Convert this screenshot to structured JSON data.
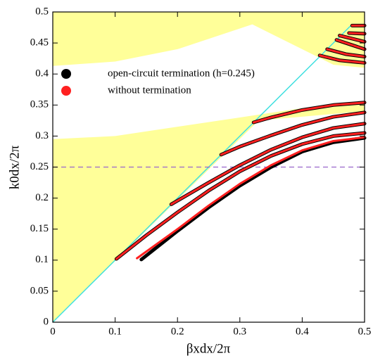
{
  "chart_data": {
    "type": "line",
    "xlabel": "βxdx/2π",
    "ylabel": "k0dx/2π",
    "xlim": [
      0,
      0.5
    ],
    "ylim": [
      0,
      0.5
    ],
    "xticks": [
      0,
      0.1,
      0.2,
      0.3,
      0.4,
      0.5
    ],
    "yticks": [
      0,
      0.05,
      0.1,
      0.15,
      0.2,
      0.25,
      0.3,
      0.35,
      0.4,
      0.45,
      0.5
    ],
    "shaded_regions": [
      {
        "color": "#ffff99",
        "x": [
          0,
          0,
          0.1,
          0.2,
          0.32,
          0.42,
          0.45,
          0.5,
          0.5
        ],
        "y": [
          0.5,
          0.413,
          0.42,
          0.44,
          0.48,
          0.43,
          0.415,
          0.41,
          0.5
        ]
      },
      {
        "color": "#ffff99",
        "x": [
          0,
          0,
          0.1,
          0.2,
          0.3,
          0.4,
          0.5,
          0.5,
          0.33
        ],
        "y": [
          0,
          0.295,
          0.3,
          0.315,
          0.33,
          0.345,
          0.355,
          0.34,
          0.325
        ]
      }
    ],
    "light_line": {
      "color": "#40e0e0",
      "x": [
        0,
        0.48
      ],
      "y": [
        0,
        0.48
      ]
    },
    "reference_line": {
      "color": "#9966cc",
      "y": 0.25
    },
    "series": [
      {
        "name": "open-circuit termination (h=0.245)",
        "color": "#000000",
        "x": [
          0.102,
          0.15,
          0.2,
          0.25,
          0.3,
          0.35,
          0.4,
          0.45,
          0.5,
          null,
          0.142,
          0.2,
          0.25,
          0.3,
          0.35,
          0.4,
          0.45,
          0.5,
          null,
          0.19,
          0.25,
          0.3,
          0.35,
          0.4,
          0.45,
          0.5,
          null,
          0.27,
          0.3,
          0.35,
          0.4,
          0.45,
          0.5,
          null,
          0.322,
          0.35,
          0.4,
          0.45,
          0.5,
          null,
          0.428,
          0.46,
          0.5,
          null,
          0.44,
          0.47,
          0.5,
          null,
          0.455,
          0.5,
          null,
          0.46,
          0.5,
          null,
          0.475,
          0.5,
          null,
          0.48,
          0.5
        ],
        "values": [
          0.102,
          0.14,
          0.177,
          0.212,
          0.243,
          0.268,
          0.287,
          0.3,
          0.305,
          null,
          0.101,
          0.147,
          0.185,
          0.22,
          0.25,
          0.275,
          0.29,
          0.297,
          null,
          0.19,
          0.225,
          0.253,
          0.278,
          0.298,
          0.313,
          0.32,
          null,
          0.27,
          0.283,
          0.301,
          0.318,
          0.331,
          0.338,
          null,
          0.322,
          0.33,
          0.342,
          0.35,
          0.354,
          null,
          0.43,
          0.422,
          0.418,
          null,
          0.44,
          0.432,
          0.428,
          null,
          0.455,
          0.44,
          null,
          0.462,
          0.452,
          null,
          0.466,
          0.465,
          null,
          0.478,
          0.478
        ]
      },
      {
        "name": "without termination",
        "color": "#ff2020",
        "x": [
          0.102,
          0.15,
          0.2,
          0.25,
          0.3,
          0.35,
          0.4,
          0.45,
          0.5,
          null,
          0.135,
          0.2,
          0.25,
          0.3,
          0.35,
          0.4,
          0.45,
          0.5,
          null,
          0.19,
          0.25,
          0.3,
          0.35,
          0.4,
          0.45,
          0.5,
          null,
          0.27,
          0.3,
          0.35,
          0.4,
          0.45,
          0.5,
          null,
          0.322,
          0.35,
          0.4,
          0.45,
          0.5,
          null,
          0.428,
          0.46,
          0.5,
          null,
          0.44,
          0.47,
          0.5,
          null,
          0.455,
          0.5,
          null,
          0.46,
          0.5,
          null,
          0.475,
          0.5,
          null,
          0.48,
          0.5
        ],
        "values": [
          0.102,
          0.14,
          0.177,
          0.212,
          0.243,
          0.268,
          0.287,
          0.3,
          0.305,
          null,
          0.103,
          0.15,
          0.188,
          0.223,
          0.253,
          0.277,
          0.292,
          0.298,
          null,
          0.19,
          0.225,
          0.253,
          0.278,
          0.298,
          0.313,
          0.32,
          null,
          0.27,
          0.283,
          0.301,
          0.318,
          0.331,
          0.338,
          null,
          0.322,
          0.33,
          0.342,
          0.35,
          0.354,
          null,
          0.43,
          0.422,
          0.418,
          null,
          0.44,
          0.432,
          0.428,
          null,
          0.455,
          0.44,
          null,
          0.462,
          0.452,
          null,
          0.466,
          0.465,
          null,
          0.478,
          0.478
        ]
      }
    ]
  }
}
